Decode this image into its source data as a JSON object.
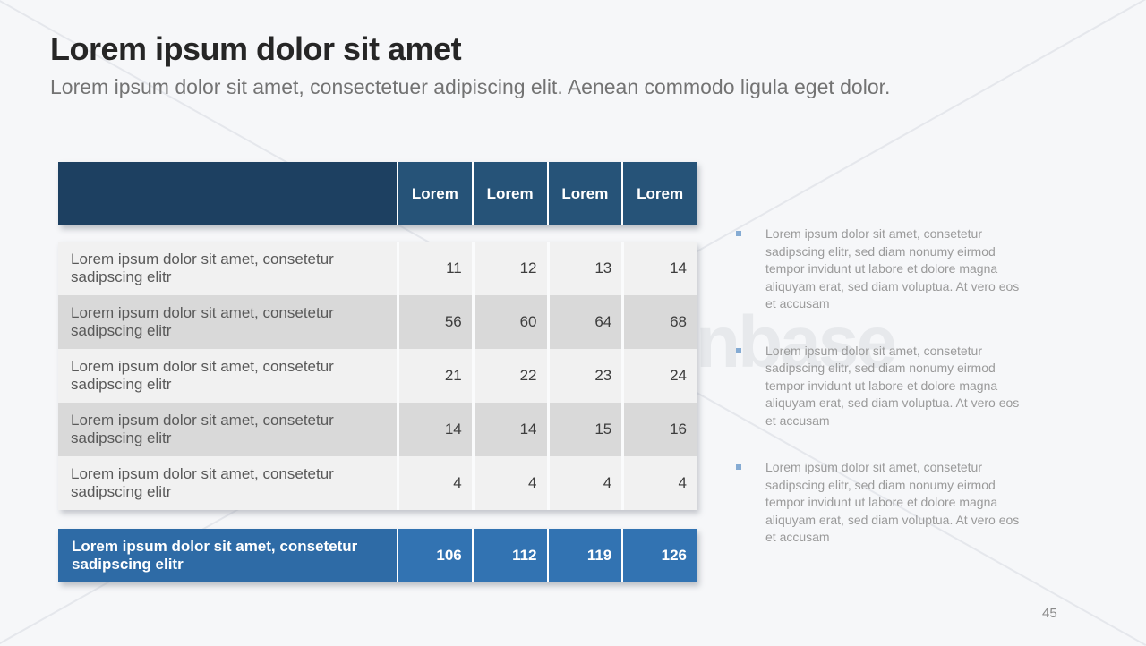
{
  "slide": {
    "title": "Lorem ipsum dolor sit amet",
    "subtitle": "Lorem ipsum dolor sit amet, consectetuer adipiscing elit. Aenean commodo ligula eget dolor.",
    "page_number": "45"
  },
  "watermark": {
    "text": "presentationbase"
  },
  "table": {
    "header": {
      "columns": [
        "Lorem",
        "Lorem",
        "Lorem",
        "Lorem"
      ]
    },
    "rows": [
      {
        "label": "Lorem ipsum dolor sit amet, consetetur sadipscing elitr",
        "values": [
          "11",
          "12",
          "13",
          "14"
        ]
      },
      {
        "label": "Lorem ipsum dolor sit amet, consetetur sadipscing elitr",
        "values": [
          "56",
          "60",
          "64",
          "68"
        ]
      },
      {
        "label": "Lorem ipsum dolor sit amet, consetetur sadipscing elitr",
        "values": [
          "21",
          "22",
          "23",
          "24"
        ]
      },
      {
        "label": "Lorem ipsum dolor sit amet, consetetur sadipscing elitr",
        "values": [
          "14",
          "14",
          "15",
          "16"
        ]
      },
      {
        "label": "Lorem ipsum dolor sit amet, consetetur sadipscing elitr",
        "values": [
          "4",
          "4",
          "4",
          "4"
        ]
      }
    ],
    "total_row": {
      "label": "Lorem ipsum dolor sit amet, consetetur sadipscing elitr",
      "values": [
        "106",
        "112",
        "119",
        "126"
      ]
    }
  },
  "bullets": [
    {
      "text": "Lorem ipsum dolor sit amet, consetetur sadipscing elitr, sed diam nonumy eirmod tempor invidunt ut labore et dolore magna aliquyam erat, sed diam voluptua. At vero eos et accusam"
    },
    {
      "text": "Lorem ipsum dolor sit amet, consetetur sadipscing elitr, sed diam nonumy eirmod tempor invidunt ut labore et dolore magna aliquyam erat, sed diam voluptua. At vero eos et accusam"
    },
    {
      "text": "Lorem ipsum dolor sit amet, consetetur sadipscing elitr, sed diam nonumy eirmod tempor invidunt ut labore et dolore magna aliquyam erat, sed diam voluptua. At vero eos et accusam"
    }
  ],
  "colors": {
    "header_navy": "#1d4061",
    "header_cell_blue": "#265378",
    "total_blue": "#2e6ba6",
    "total_cell_blue": "#3273b2",
    "row_light": "#f1f1f1",
    "row_gray": "#d9d9d9",
    "bullet_accent": "#85abd3"
  }
}
